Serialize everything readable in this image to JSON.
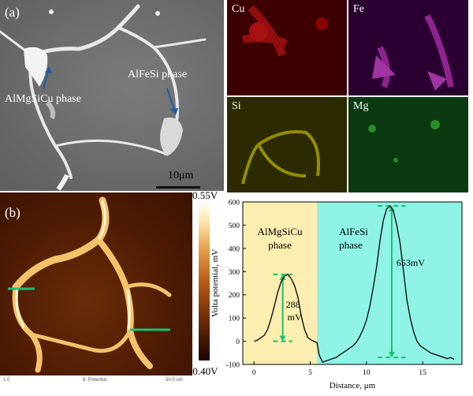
{
  "panel_a": {
    "label": "(a)",
    "annotation1": "AlMgSiCu phase",
    "annotation2": "AlFeSi phase",
    "scale_bar": "10μm"
  },
  "element_maps": [
    {
      "label": "Cu",
      "color": "#ff1a1a"
    },
    {
      "label": "Fe",
      "color": "#e040e0"
    },
    {
      "label": "Si",
      "color": "#e8e000"
    },
    {
      "label": "Mg",
      "color": "#30c030"
    }
  ],
  "panel_b": {
    "label": "(b)",
    "colorbar_max": "0.55V",
    "colorbar_min": "-0.40V",
    "colorbar_axis": "Volta potential, mV",
    "footer_left": "1.0",
    "footer_mid": "8: Potential",
    "footer_right": "50.0 um"
  },
  "chart_data": {
    "type": "line",
    "xlabel": "Distance, μm",
    "ylabel": "Volta potential, mV",
    "xlim": [
      -1,
      18.5
    ],
    "ylim": [
      -100,
      600
    ],
    "xticks": [
      0,
      5,
      10,
      15
    ],
    "yticks": [
      -100,
      0,
      100,
      200,
      300,
      400,
      500,
      600
    ],
    "regions": [
      {
        "name": "AlMgSiCu phase",
        "x_from": -1,
        "x_to": 5.6,
        "color": "#fbeeb0"
      },
      {
        "name": "AlFeSi phase",
        "x_from": 5.6,
        "x_to": 18.5,
        "color": "#8ff3e6"
      }
    ],
    "annotations": [
      {
        "text": "288 mV",
        "x_from": 1.7,
        "x_to": 3.4,
        "y_low": 0,
        "y_high": 288
      },
      {
        "text": "653mV",
        "x_from": 11.0,
        "x_to": 13.5,
        "y_low": -70,
        "y_high": 583
      }
    ],
    "x": [
      0.0,
      0.3,
      0.6,
      0.9,
      1.2,
      1.5,
      1.8,
      2.1,
      2.4,
      2.7,
      3.0,
      3.3,
      3.6,
      3.9,
      4.2,
      4.5,
      4.8,
      5.1,
      5.4,
      5.6,
      5.8,
      6.1,
      6.4,
      6.7,
      7.0,
      7.3,
      7.6,
      7.9,
      8.2,
      8.5,
      8.8,
      9.1,
      9.4,
      9.7,
      10.0,
      10.3,
      10.6,
      10.9,
      11.2,
      11.5,
      11.8,
      12.1,
      12.4,
      12.7,
      13.0,
      13.3,
      13.6,
      13.9,
      14.2,
      14.5,
      14.8,
      15.1,
      15.4,
      15.7,
      16.0,
      16.3,
      16.6,
      16.9,
      17.2,
      17.5,
      17.8
    ],
    "y": [
      0,
      5,
      15,
      25,
      50,
      95,
      150,
      210,
      255,
      280,
      288,
      270,
      240,
      190,
      110,
      50,
      15,
      5,
      -2,
      -5,
      -60,
      -90,
      -85,
      -80,
      -75,
      -70,
      -60,
      -50,
      -40,
      -30,
      -20,
      -5,
      20,
      50,
      90,
      150,
      230,
      320,
      430,
      520,
      570,
      583,
      560,
      500,
      420,
      300,
      180,
      100,
      40,
      0,
      -20,
      -30,
      -40,
      -50,
      -55,
      -60,
      -65,
      -70,
      -75,
      -70,
      -78
    ]
  }
}
